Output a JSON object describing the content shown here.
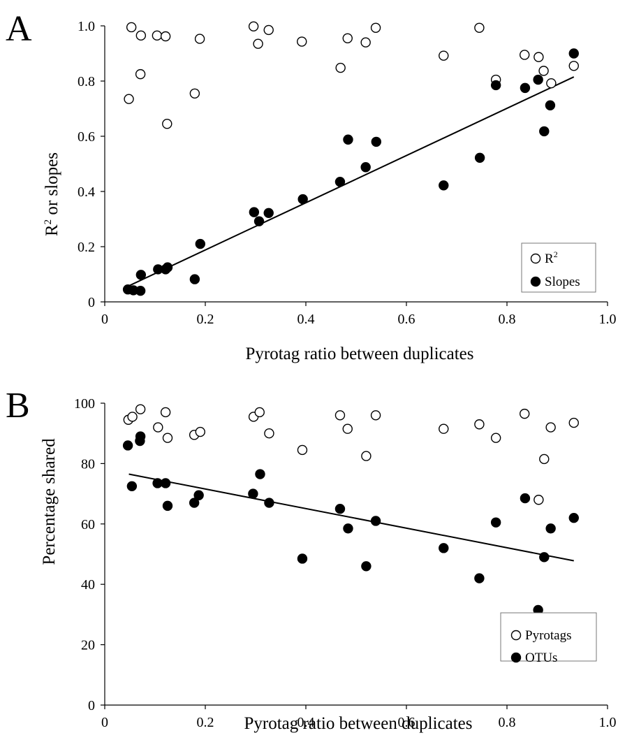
{
  "chart_data": [
    {
      "type": "scatter",
      "panel_label": "A",
      "xlabel": "Pyrotag ratio between duplicates",
      "ylabel_main": "R",
      "ylabel_sup": "2",
      "ylabel_rest": " or slopes",
      "xlim": [
        0,
        1.0
      ],
      "ylim": [
        0,
        1.0
      ],
      "x_ticks": [
        "0",
        "0.2",
        "0.4",
        "0.6",
        "0.8",
        "1.0"
      ],
      "x_tick_values": [
        0,
        0.2,
        0.4,
        0.6,
        0.8,
        1.0
      ],
      "y_ticks": [
        "0",
        "0.2",
        "0.4",
        "0.6",
        "0.8",
        "1.0"
      ],
      "y_tick_values": [
        0,
        0.2,
        0.4,
        0.6,
        0.8,
        1.0
      ],
      "legend_position": "bottom-right",
      "series": [
        {
          "name": "R",
          "name_sup": "2",
          "marker": "open-circle",
          "points": [
            [
              0.048,
              0.735
            ],
            [
              0.053,
              0.995
            ],
            [
              0.072,
              0.965
            ],
            [
              0.071,
              0.825
            ],
            [
              0.104,
              0.965
            ],
            [
              0.121,
              0.962
            ],
            [
              0.124,
              0.645
            ],
            [
              0.179,
              0.755
            ],
            [
              0.189,
              0.953
            ],
            [
              0.296,
              0.998
            ],
            [
              0.305,
              0.935
            ],
            [
              0.326,
              0.985
            ],
            [
              0.392,
              0.943
            ],
            [
              0.469,
              0.848
            ],
            [
              0.483,
              0.955
            ],
            [
              0.519,
              0.94
            ],
            [
              0.539,
              0.993
            ],
            [
              0.745,
              0.993
            ],
            [
              0.674,
              0.892
            ],
            [
              0.778,
              0.805
            ],
            [
              0.835,
              0.895
            ],
            [
              0.863,
              0.887
            ],
            [
              0.873,
              0.837
            ],
            [
              0.888,
              0.792
            ],
            [
              0.933,
              0.855
            ]
          ]
        },
        {
          "name": "Slopes",
          "marker": "filled-circle",
          "points": [
            [
              0.046,
              0.045
            ],
            [
              0.057,
              0.042
            ],
            [
              0.071,
              0.04
            ],
            [
              0.072,
              0.098
            ],
            [
              0.106,
              0.118
            ],
            [
              0.121,
              0.118
            ],
            [
              0.125,
              0.125
            ],
            [
              0.179,
              0.082
            ],
            [
              0.19,
              0.21
            ],
            [
              0.297,
              0.325
            ],
            [
              0.307,
              0.292
            ],
            [
              0.326,
              0.322
            ],
            [
              0.394,
              0.372
            ],
            [
              0.468,
              0.435
            ],
            [
              0.484,
              0.588
            ],
            [
              0.519,
              0.488
            ],
            [
              0.54,
              0.58
            ],
            [
              0.674,
              0.422
            ],
            [
              0.746,
              0.522
            ],
            [
              0.778,
              0.785
            ],
            [
              0.836,
              0.775
            ],
            [
              0.862,
              0.805
            ],
            [
              0.874,
              0.618
            ],
            [
              0.886,
              0.712
            ],
            [
              0.933,
              0.9
            ]
          ]
        }
      ],
      "trendline": [
        [
          0.048,
          0.058
        ],
        [
          0.933,
          0.815
        ]
      ]
    },
    {
      "type": "scatter",
      "panel_label": "B",
      "xlabel": "Pyrotag ratio between duplicates",
      "ylabel": "Percentage shared",
      "xlim": [
        0,
        1.0
      ],
      "ylim": [
        0,
        100
      ],
      "x_ticks": [
        "0",
        "0.2",
        "0.4",
        "0.6",
        "0.8",
        "1.0"
      ],
      "x_tick_values": [
        0,
        0.2,
        0.4,
        0.6,
        0.8,
        1.0
      ],
      "y_ticks": [
        "0",
        "20",
        "40",
        "60",
        "80",
        "100"
      ],
      "y_tick_values": [
        0,
        20,
        40,
        60,
        80,
        100
      ],
      "legend_position": "bottom-right",
      "series": [
        {
          "name": "Pyrotags",
          "marker": "open-circle",
          "points": [
            [
              0.047,
              94.5
            ],
            [
              0.055,
              95.5
            ],
            [
              0.071,
              98
            ],
            [
              0.106,
              92
            ],
            [
              0.121,
              97
            ],
            [
              0.125,
              88.5
            ],
            [
              0.178,
              89.5
            ],
            [
              0.19,
              90.5
            ],
            [
              0.296,
              95.5
            ],
            [
              0.308,
              97
            ],
            [
              0.327,
              90
            ],
            [
              0.393,
              84.5
            ],
            [
              0.468,
              96
            ],
            [
              0.483,
              91.5
            ],
            [
              0.52,
              82.5
            ],
            [
              0.539,
              96
            ],
            [
              0.674,
              91.5
            ],
            [
              0.745,
              93
            ],
            [
              0.778,
              88.5
            ],
            [
              0.835,
              96.5
            ],
            [
              0.863,
              68
            ],
            [
              0.874,
              81.5
            ],
            [
              0.887,
              92
            ],
            [
              0.933,
              93.5
            ]
          ]
        },
        {
          "name": "OTUs",
          "marker": "filled-circle",
          "points": [
            [
              0.046,
              86
            ],
            [
              0.054,
              72.5
            ],
            [
              0.07,
              87.5
            ],
            [
              0.071,
              89
            ],
            [
              0.105,
              73.5
            ],
            [
              0.121,
              73.5
            ],
            [
              0.125,
              66
            ],
            [
              0.178,
              67
            ],
            [
              0.187,
              69.5
            ],
            [
              0.295,
              70
            ],
            [
              0.309,
              76.5
            ],
            [
              0.327,
              67
            ],
            [
              0.393,
              48.5
            ],
            [
              0.468,
              65
            ],
            [
              0.484,
              58.5
            ],
            [
              0.52,
              46
            ],
            [
              0.539,
              61
            ],
            [
              0.674,
              52
            ],
            [
              0.745,
              42
            ],
            [
              0.778,
              60.5
            ],
            [
              0.836,
              68.5
            ],
            [
              0.862,
              31.5
            ],
            [
              0.874,
              49
            ],
            [
              0.887,
              58.5
            ],
            [
              0.933,
              62
            ]
          ]
        }
      ],
      "trendline": [
        [
          0.048,
          76.5
        ],
        [
          0.933,
          47.8
        ]
      ]
    }
  ]
}
